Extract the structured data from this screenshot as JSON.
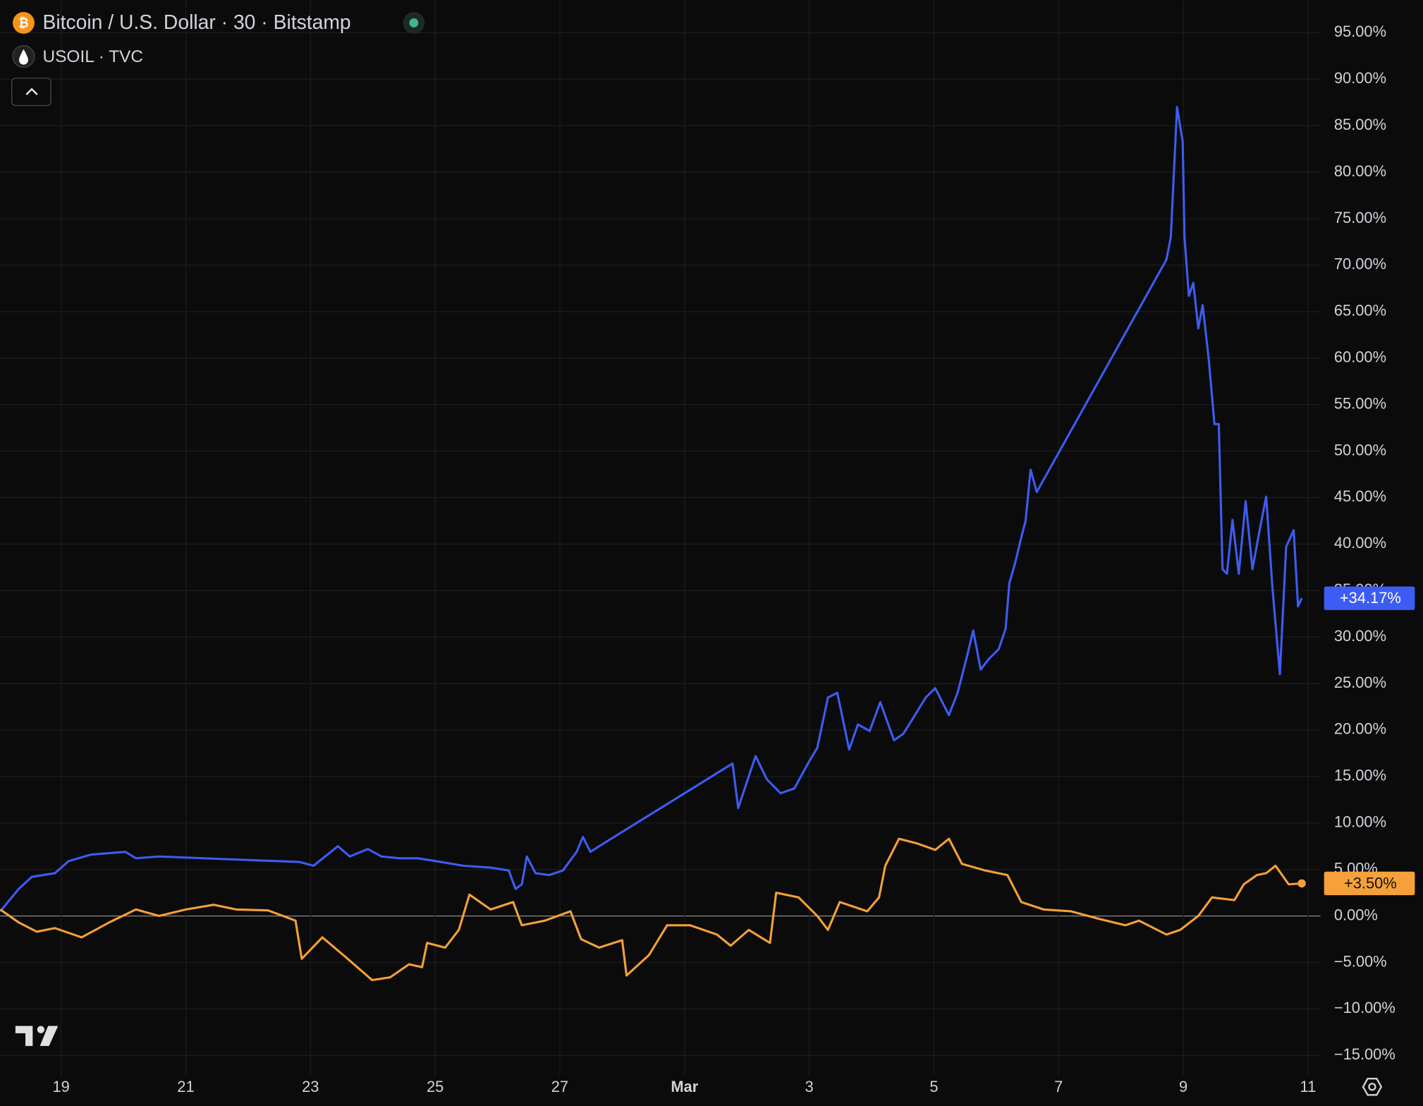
{
  "chart_data": {
    "type": "line",
    "grid": true,
    "xlim": [
      -0.98,
      20.2
    ],
    "ylim": [
      -17.2,
      98.5
    ],
    "xticks": [
      {
        "value": 0,
        "label": "19"
      },
      {
        "value": 2,
        "label": "21"
      },
      {
        "value": 4,
        "label": "23"
      },
      {
        "value": 6,
        "label": "25"
      },
      {
        "value": 8,
        "label": "27"
      },
      {
        "value": 10,
        "label": "Mar"
      },
      {
        "value": 12,
        "label": "3"
      },
      {
        "value": 14,
        "label": "5"
      },
      {
        "value": 16,
        "label": "7"
      },
      {
        "value": 18,
        "label": "9"
      },
      {
        "value": 20,
        "label": "11"
      }
    ],
    "yticks": [
      {
        "value": -15,
        "label": "−15.00%"
      },
      {
        "value": -10,
        "label": "−10.00%"
      },
      {
        "value": -5,
        "label": "−5.00%"
      },
      {
        "value": 0,
        "label": "0.00%"
      },
      {
        "value": 5,
        "label": "5.00%"
      },
      {
        "value": 10,
        "label": "10.00%"
      },
      {
        "value": 15,
        "label": "15.00%"
      },
      {
        "value": 20,
        "label": "20.00%"
      },
      {
        "value": 25,
        "label": "25.00%"
      },
      {
        "value": 30,
        "label": "30.00%"
      },
      {
        "value": 35,
        "label": "35.00%"
      },
      {
        "value": 40,
        "label": "40.00%"
      },
      {
        "value": 45,
        "label": "45.00%"
      },
      {
        "value": 50,
        "label": "50.00%"
      },
      {
        "value": 55,
        "label": "55.00%"
      },
      {
        "value": 60,
        "label": "60.00%"
      },
      {
        "value": 65,
        "label": "65.00%"
      },
      {
        "value": 70,
        "label": "70.00%"
      },
      {
        "value": 75,
        "label": "75.00%"
      },
      {
        "value": 80,
        "label": "80.00%"
      },
      {
        "value": 85,
        "label": "85.00%"
      },
      {
        "value": 90,
        "label": "90.00%"
      },
      {
        "value": 95,
        "label": "95.00%"
      }
    ],
    "series": [
      {
        "name": "Bitcoin / U.S. Dollar · 30 · Bitstamp",
        "color": "#3d5cf2",
        "last_value": 34.17,
        "last_label": "+34.17%",
        "x": [
          -0.975,
          -0.68,
          -0.47,
          -0.1,
          0.12,
          0.48,
          1.03,
          1.2,
          1.57,
          3.83,
          4.05,
          4.44,
          4.63,
          4.92,
          5.14,
          5.43,
          5.72,
          6.01,
          6.45,
          6.89,
          7.18,
          7.29,
          7.39,
          7.47,
          7.61,
          7.83,
          8.05,
          8.27,
          8.37,
          8.49,
          8.63,
          10.77,
          10.86,
          10.99,
          11.14,
          11.32,
          11.54,
          11.76,
          11.98,
          12.13,
          12.3,
          12.45,
          12.64,
          12.78,
          12.97,
          13.14,
          13.36,
          13.51,
          13.65,
          13.87,
          14.02,
          14.24,
          14.38,
          14.53,
          14.63,
          14.75,
          14.89,
          15.04,
          15.15,
          15.21,
          15.3,
          15.4,
          15.47,
          15.55,
          15.65,
          17.73,
          17.8,
          17.9,
          17.99,
          18.02,
          18.09,
          18.16,
          18.24,
          18.31,
          18.41,
          18.5,
          18.57,
          18.63,
          18.7,
          18.79,
          18.89,
          19.0,
          19.11,
          19.23,
          19.33,
          19.43,
          19.55,
          19.65,
          19.77,
          19.84,
          19.9
        ],
        "values": [
          0.5,
          2.9,
          4.2,
          4.6,
          5.9,
          6.6,
          6.9,
          6.2,
          6.4,
          5.8,
          5.4,
          7.5,
          6.4,
          7.2,
          6.4,
          6.2,
          6.2,
          5.9,
          5.4,
          5.2,
          4.9,
          2.9,
          3.4,
          6.4,
          4.6,
          4.4,
          4.9,
          6.9,
          8.5,
          6.9,
          7.5,
          16.4,
          11.6,
          14.2,
          17.2,
          14.7,
          13.2,
          13.7,
          16.4,
          18.1,
          23.5,
          24.0,
          17.9,
          20.6,
          19.9,
          23.0,
          18.9,
          19.6,
          21.1,
          23.5,
          24.5,
          21.6,
          24.0,
          27.9,
          30.7,
          26.5,
          27.7,
          28.7,
          30.9,
          35.8,
          37.9,
          40.7,
          42.5,
          48.0,
          45.6,
          70.6,
          73.0,
          87.0,
          83.3,
          73.0,
          66.7,
          68.1,
          63.2,
          65.7,
          59.8,
          52.9,
          52.9,
          37.3,
          36.8,
          42.6,
          36.8,
          44.6,
          37.3,
          41.7,
          45.1,
          35.3,
          26.0,
          39.7,
          41.5,
          33.3,
          34.2
        ]
      },
      {
        "name": "USOIL · TVC",
        "color": "#f5a03a",
        "last_value": 3.5,
        "last_label": "+3.50%",
        "x": [
          -0.975,
          -0.68,
          -0.39,
          -0.1,
          0.33,
          0.77,
          1.2,
          1.57,
          2.0,
          2.45,
          2.81,
          3.32,
          3.76,
          3.86,
          4.19,
          4.56,
          4.99,
          5.28,
          5.58,
          5.79,
          5.87,
          6.16,
          6.38,
          6.55,
          6.89,
          7.25,
          7.39,
          7.76,
          8.17,
          8.34,
          8.63,
          9.0,
          9.07,
          9.43,
          9.72,
          10.09,
          10.52,
          10.74,
          11.03,
          11.37,
          11.47,
          11.83,
          12.13,
          12.3,
          12.49,
          12.93,
          13.12,
          13.22,
          13.44,
          13.73,
          14.02,
          14.24,
          14.45,
          14.82,
          15.18,
          15.4,
          15.76,
          16.2,
          16.64,
          17.07,
          17.29,
          17.73,
          17.95,
          18.24,
          18.46,
          18.82,
          18.97,
          19.18,
          19.33,
          19.48,
          19.69,
          19.9
        ],
        "values": [
          0.7,
          -0.7,
          -1.7,
          -1.3,
          -2.3,
          -0.7,
          0.7,
          0,
          0.7,
          1.2,
          0.7,
          0.6,
          -0.5,
          -4.6,
          -2.3,
          -4.4,
          -6.9,
          -6.6,
          -5.2,
          -5.5,
          -2.9,
          -3.4,
          -1.5,
          2.3,
          0.7,
          1.5,
          -1.0,
          -0.5,
          0.5,
          -2.5,
          -3.4,
          -2.6,
          -6.4,
          -4.2,
          -1.0,
          -1.0,
          -2.0,
          -3.2,
          -1.5,
          -2.9,
          2.5,
          2.0,
          0,
          -1.5,
          1.5,
          0.5,
          2.0,
          5.4,
          8.3,
          7.8,
          7.1,
          8.3,
          5.6,
          4.9,
          4.4,
          1.5,
          0.7,
          0.5,
          -0.3,
          -1.0,
          -0.5,
          -2.0,
          -1.5,
          0,
          2.0,
          1.7,
          3.4,
          4.4,
          4.6,
          5.4,
          3.4,
          3.5
        ]
      }
    ]
  }
}
